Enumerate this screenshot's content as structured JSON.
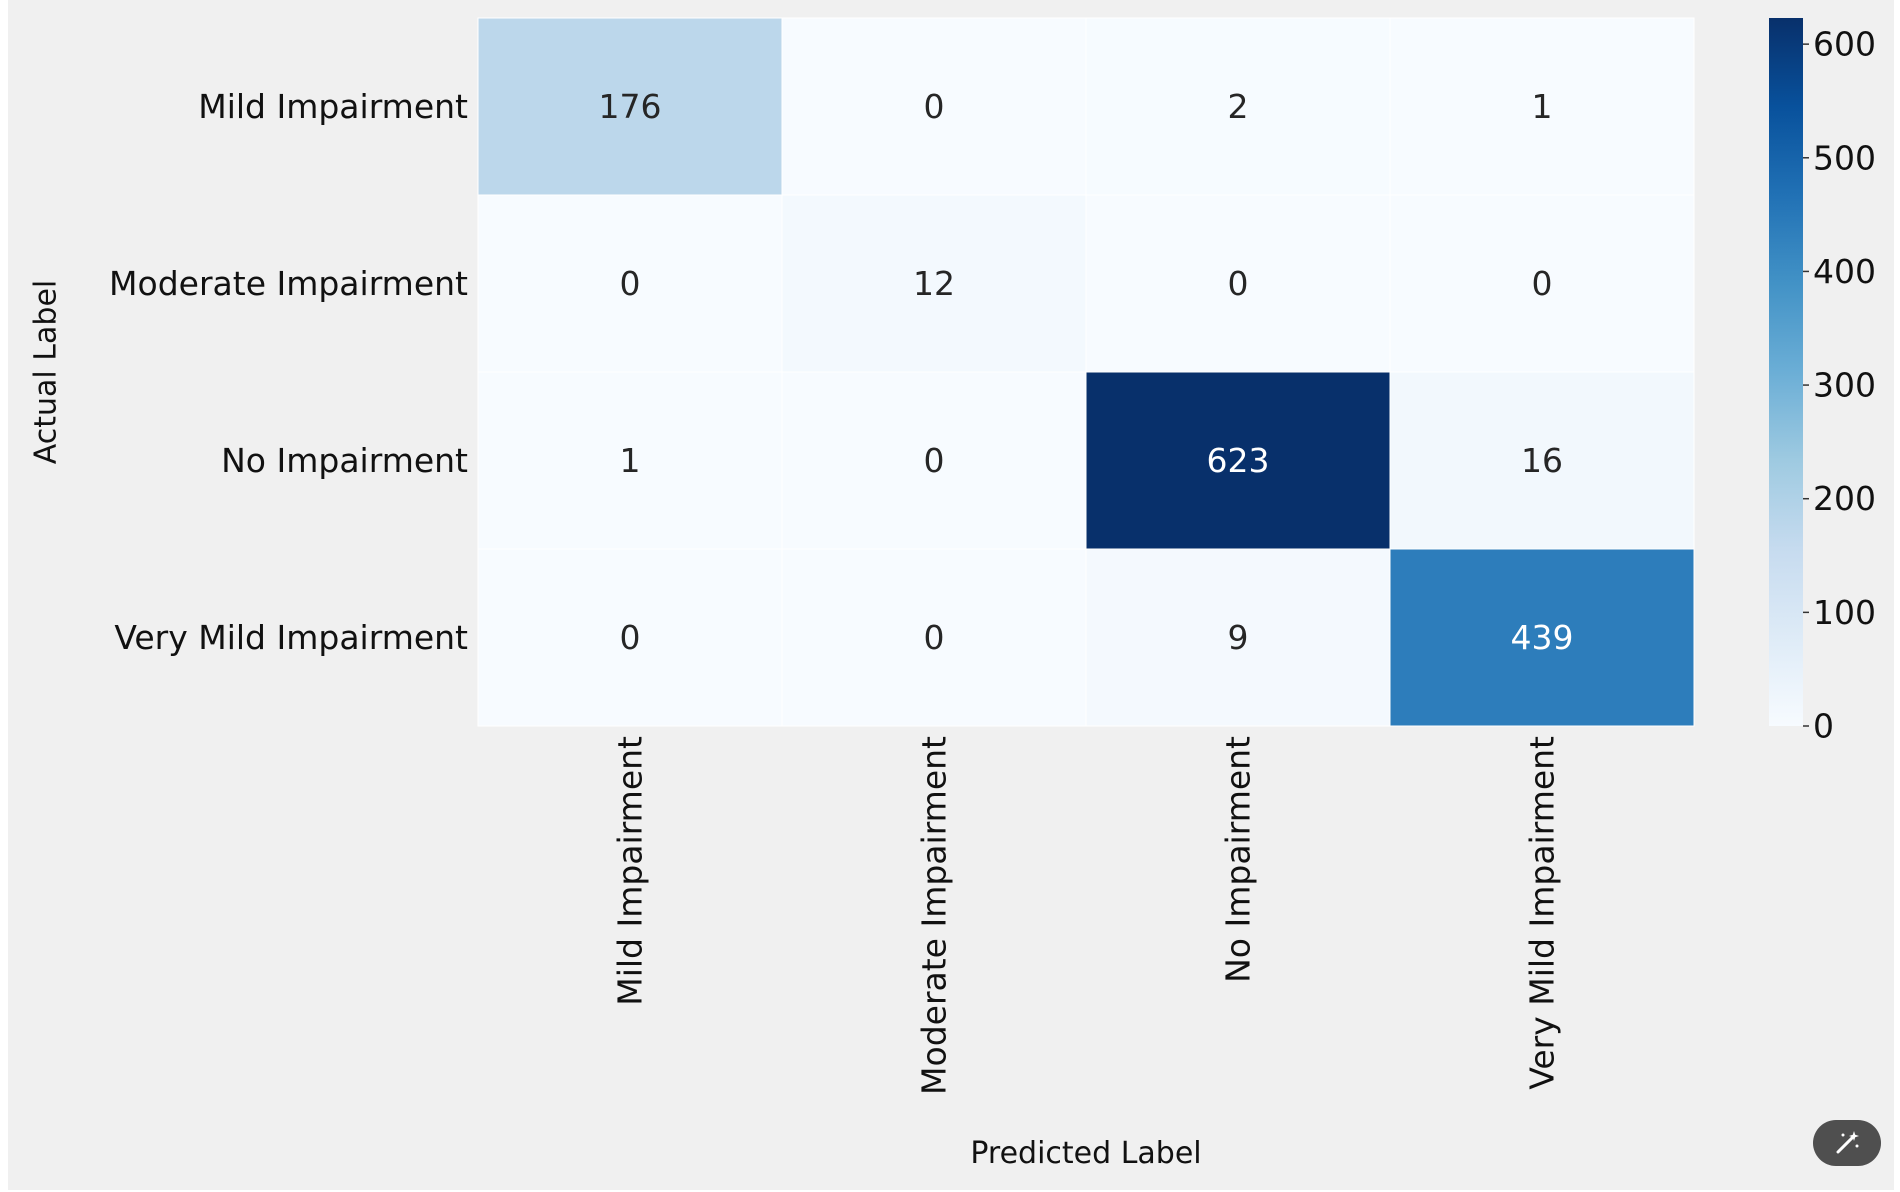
{
  "chart_data": {
    "type": "heatmap",
    "title": "",
    "xlabel": "Predicted Label",
    "ylabel": "Actual Label",
    "x_categories": [
      "Mild Impairment",
      "Moderate Impairment",
      "No Impairment",
      "Very Mild Impairment"
    ],
    "y_categories": [
      "Mild Impairment",
      "Moderate Impairment",
      "No Impairment",
      "Very Mild Impairment"
    ],
    "values": [
      [
        176,
        0,
        2,
        1
      ],
      [
        0,
        12,
        0,
        0
      ],
      [
        1,
        0,
        623,
        16
      ],
      [
        0,
        0,
        9,
        439
      ]
    ],
    "colormap": "Blues",
    "colorbar": {
      "min": 0,
      "max": 623,
      "ticks": [
        0,
        100,
        200,
        300,
        400,
        500,
        600
      ]
    },
    "grid": false
  },
  "toolbar": {
    "icon": "magic-wand-icon"
  }
}
